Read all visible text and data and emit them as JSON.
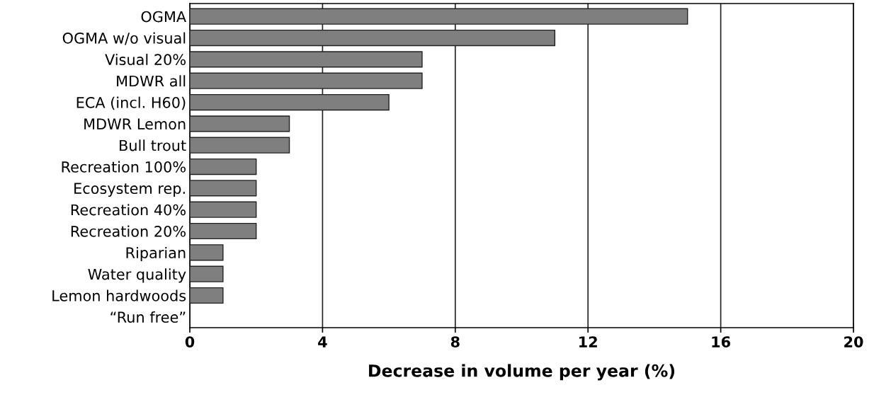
{
  "chart_data": {
    "type": "bar",
    "orientation": "horizontal",
    "xlabel": "Decrease in volume per year (%)",
    "categories": [
      "OGMA",
      "OGMA w/o visual",
      "Visual 20%",
      "MDWR all",
      "ECA (incl. H60)",
      "MDWR Lemon",
      "Bull trout",
      "Recreation 100%",
      "Ecosystem rep.",
      "Recreation 40%",
      "Recreation 20%",
      "Riparian",
      "Water quality",
      "Lemon hardwoods",
      "“Run free”"
    ],
    "values": [
      15,
      11,
      7,
      7,
      6,
      3,
      3,
      2,
      2,
      2,
      2,
      1,
      1,
      1,
      0
    ],
    "color": "#7f7f7f",
    "xlim": [
      0,
      20
    ],
    "xticks": [
      0,
      4,
      8,
      12,
      16,
      20
    ],
    "grid": "x"
  }
}
